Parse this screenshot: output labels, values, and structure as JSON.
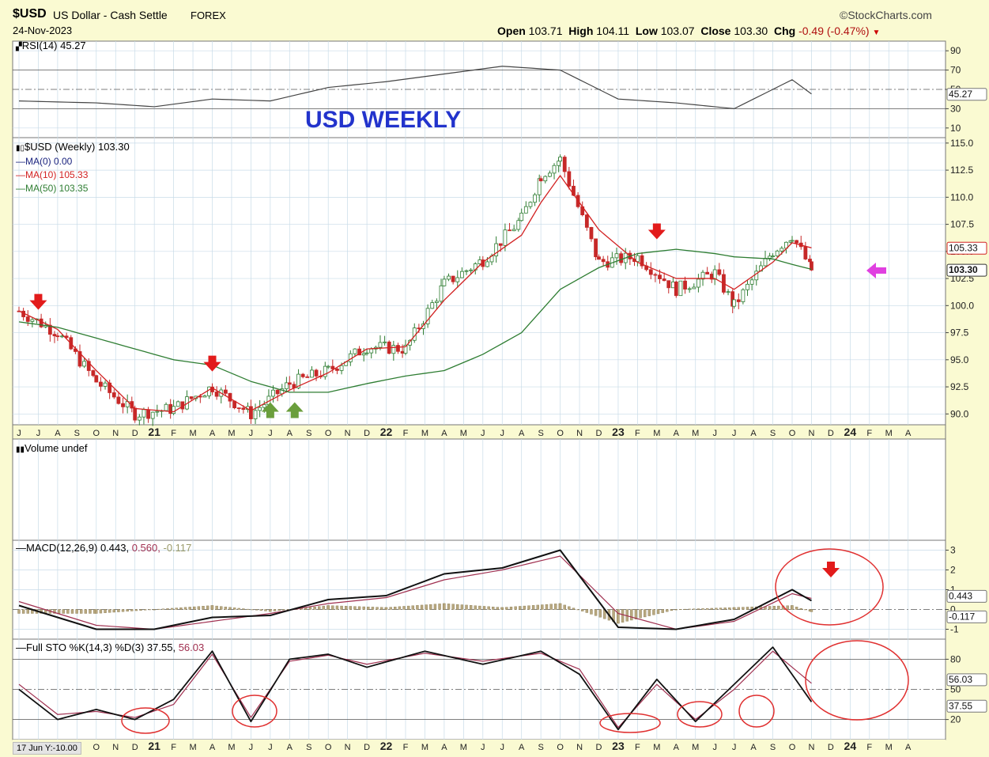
{
  "header": {
    "symbol": "$USD",
    "name": "US Dollar - Cash Settle",
    "exchange": "FOREX",
    "date": "24-Nov-2023",
    "brand": "StockCharts.com",
    "open_label": "Open",
    "open": "103.71",
    "high_label": "High",
    "high": "104.11",
    "low_label": "Low",
    "low": "103.07",
    "close_label": "Close",
    "close": "103.30",
    "chg_label": "Chg",
    "chg": "-0.49 (-0.47%)"
  },
  "annotation": "USD WEEKLY",
  "footer": "17 Jun Y:-10.00",
  "colors": {
    "bg": "#fafad2",
    "panel": "#ffffff",
    "grid": "#c8dbe8",
    "ma10": "#d22222",
    "ma50": "#2e7d32",
    "macd_signal": "#a03050",
    "arrow_red": "#e21b1b",
    "arrow_green": "#6a9e3c",
    "arrow_magenta": "#e040e0",
    "circle": "#e03030",
    "up_candle": "#2e7d32",
    "down_candle": "#c62828"
  },
  "x_labels": [
    "J",
    "J",
    "A",
    "S",
    "O",
    "N",
    "D",
    "21",
    "F",
    "M",
    "A",
    "M",
    "J",
    "J",
    "A",
    "S",
    "O",
    "N",
    "D",
    "22",
    "F",
    "M",
    "A",
    "M",
    "J",
    "J",
    "A",
    "S",
    "O",
    "N",
    "D",
    "23",
    "F",
    "M",
    "A",
    "M",
    "J",
    "J",
    "A",
    "S",
    "O",
    "N",
    "D",
    "24",
    "F",
    "M",
    "A"
  ],
  "panels": {
    "rsi": {
      "legend": "RSI(14) 45.27",
      "ticks": [
        "90",
        "70",
        "50",
        "30",
        "10"
      ],
      "value_label": "45.27"
    },
    "price": {
      "legend_main": "$USD (Weekly) 103.30",
      "legend_ma0": "MA(0) 0.00",
      "legend_ma10": "MA(10) 105.33",
      "legend_ma50": "MA(50) 103.35",
      "ticks": [
        "115.0",
        "112.5",
        "110.0",
        "107.5",
        "105.0",
        "102.5",
        "100.0",
        "97.5",
        "95.0",
        "92.5",
        "90.0"
      ],
      "label_ma10": "105.33",
      "label_close": "103.30"
    },
    "volume": {
      "legend": "Volume undef"
    },
    "macd": {
      "legend": "MACD(12,26,9)",
      "legend_v1": "0.443,",
      "legend_v2": "0.560,",
      "legend_v3": "-0.117",
      "ticks": [
        "3",
        "2",
        "1",
        "0",
        "-1"
      ],
      "label_macd": "0.443",
      "label_hist": "-0.117"
    },
    "sto": {
      "legend": "Full STO %K(14,3) %D(3) 37.55,",
      "legend_v2": "56.03",
      "ticks": [
        "80",
        "50",
        "20"
      ],
      "label_d": "56.03",
      "label_k": "37.55"
    }
  },
  "chart_data": [
    {
      "type": "line",
      "title": "RSI(14) 45.27",
      "x": [
        "2020-06",
        "2020-10",
        "2021-01",
        "2021-04",
        "2021-07",
        "2021-10",
        "2022-01",
        "2022-04",
        "2022-07",
        "2022-10",
        "2023-01",
        "2023-04",
        "2023-07",
        "2023-10",
        "2023-11"
      ],
      "series": [
        {
          "name": "RSI(14)",
          "values": [
            38,
            36,
            32,
            40,
            38,
            52,
            58,
            66,
            74,
            70,
            40,
            36,
            30,
            60,
            45.27
          ]
        }
      ],
      "ylim": [
        0,
        100
      ]
    },
    {
      "type": "line",
      "title": "$USD (Weekly) 103.30",
      "x": [
        "2020-06",
        "2020-08",
        "2020-10",
        "2020-12",
        "2021-02",
        "2021-04",
        "2021-06",
        "2021-08",
        "2021-10",
        "2021-12",
        "2022-02",
        "2022-04",
        "2022-06",
        "2022-08",
        "2022-09",
        "2022-10",
        "2022-12",
        "2023-02",
        "2023-04",
        "2023-06",
        "2023-07",
        "2023-09",
        "2023-10",
        "2023-11"
      ],
      "series": [
        {
          "name": "$USD (Weekly)",
          "values": [
            99.5,
            97.5,
            93.0,
            90.0,
            90.5,
            92.5,
            90.0,
            92.8,
            94.0,
            96.2,
            96.0,
            102.0,
            104.2,
            108.0,
            112.0,
            113.5,
            104.0,
            104.5,
            101.5,
            103.0,
            100.0,
            105.0,
            106.5,
            103.3
          ]
        },
        {
          "name": "MA(10)",
          "values": [
            99.5,
            97.8,
            94.0,
            90.5,
            90.2,
            92.4,
            90.3,
            92.2,
            93.8,
            96.0,
            96.2,
            100.5,
            104.0,
            106.5,
            109.5,
            112.0,
            107.0,
            104.0,
            102.5,
            102.5,
            101.5,
            104.0,
            105.8,
            105.33
          ]
        },
        {
          "name": "MA(50)",
          "values": [
            98.5,
            98.0,
            97.0,
            96.0,
            95.0,
            94.5,
            93.0,
            92.0,
            92.0,
            92.8,
            93.5,
            94.0,
            95.5,
            97.5,
            99.5,
            101.5,
            103.5,
            104.8,
            105.2,
            104.8,
            104.5,
            104.3,
            103.8,
            103.35
          ]
        }
      ],
      "ylim": [
        89,
        115.5
      ]
    },
    {
      "type": "line",
      "title": "MACD(12,26,9) 0.443, 0.560, -0.117",
      "x": [
        "2020-06",
        "2020-10",
        "2021-01",
        "2021-04",
        "2021-07",
        "2021-10",
        "2022-01",
        "2022-04",
        "2022-07",
        "2022-10",
        "2023-01",
        "2023-04",
        "2023-07",
        "2023-10",
        "2023-11"
      ],
      "series": [
        {
          "name": "MACD",
          "values": [
            0.2,
            -1.0,
            -1.0,
            -0.4,
            -0.3,
            0.5,
            0.7,
            1.8,
            2.1,
            3.0,
            -0.9,
            -1.0,
            -0.5,
            1.0,
            0.443
          ]
        },
        {
          "name": "Signal",
          "values": [
            0.4,
            -0.8,
            -1.0,
            -0.6,
            -0.2,
            0.3,
            0.6,
            1.5,
            2.0,
            2.7,
            -0.2,
            -1.0,
            -0.6,
            0.8,
            0.56
          ]
        },
        {
          "name": "Histogram",
          "values": [
            -0.2,
            -0.2,
            0.0,
            0.2,
            -0.1,
            0.2,
            0.1,
            0.3,
            0.1,
            0.3,
            -0.7,
            0.0,
            0.1,
            0.2,
            -0.117
          ]
        }
      ],
      "ylim": [
        -1.5,
        3.5
      ]
    },
    {
      "type": "line",
      "title": "Full STO %K(14,3) %D(3) 37.55, 56.03",
      "x": [
        "2020-06",
        "2020-08",
        "2020-10",
        "2020-12",
        "2021-02",
        "2021-04",
        "2021-06",
        "2021-08",
        "2021-10",
        "2021-12",
        "2022-03",
        "2022-06",
        "2022-09",
        "2022-11",
        "2023-01",
        "2023-03",
        "2023-05",
        "2023-07",
        "2023-09",
        "2023-11"
      ],
      "series": [
        {
          "name": "%K",
          "values": [
            50,
            20,
            30,
            20,
            40,
            88,
            18,
            80,
            85,
            72,
            88,
            75,
            88,
            65,
            10,
            60,
            18,
            55,
            92,
            37.55
          ]
        },
        {
          "name": "%D",
          "values": [
            55,
            25,
            28,
            22,
            35,
            85,
            22,
            78,
            84,
            75,
            86,
            78,
            86,
            70,
            12,
            55,
            20,
            50,
            88,
            56.03
          ]
        }
      ],
      "ylim": [
        0,
        100
      ]
    }
  ]
}
